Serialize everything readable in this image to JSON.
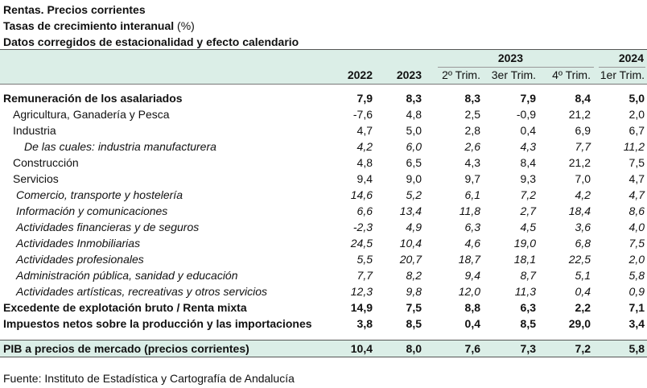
{
  "title": {
    "line1": "Rentas. Precios corrientes",
    "line2_bold": "Tasas de crecimiento interanual",
    "line2_unit": "(%)",
    "line3": "Datos corregidos de estacionalidad y efecto calendario"
  },
  "header": {
    "group_2023": "2023",
    "group_2024": "2024",
    "columns": [
      "2022",
      "2023",
      "2º Trim.",
      "3er Trim.",
      "4º Trim.",
      "1er Trim."
    ]
  },
  "rows": [
    {
      "label": "Remuneración de los asalariados",
      "style": "bold",
      "indent": 0,
      "values": [
        "7,9",
        "8,3",
        "8,3",
        "7,9",
        "8,4",
        "5,0"
      ]
    },
    {
      "label": "Agricultura, Ganadería y Pesca",
      "style": "normal",
      "indent": 1,
      "values": [
        "-7,6",
        "4,8",
        "2,5",
        "-0,9",
        "21,2",
        "2,0"
      ]
    },
    {
      "label": "Industria",
      "style": "normal",
      "indent": 1,
      "values": [
        "4,7",
        "5,0",
        "2,8",
        "0,4",
        "6,9",
        "6,7"
      ]
    },
    {
      "label": "De las cuales: industria manufacturera",
      "style": "italic",
      "indent": 2,
      "values": [
        "4,2",
        "6,0",
        "2,6",
        "4,3",
        "7,7",
        "11,2"
      ]
    },
    {
      "label": "Construcción",
      "style": "normal",
      "indent": 1,
      "values": [
        "4,8",
        "6,5",
        "4,3",
        "8,4",
        "21,2",
        "7,5"
      ]
    },
    {
      "label": "Servicios",
      "style": "normal",
      "indent": 1,
      "values": [
        "9,4",
        "9,0",
        "9,7",
        "9,3",
        "7,0",
        "4,7"
      ]
    },
    {
      "label": "Comercio, transporte y hostelería",
      "style": "italic",
      "indent": 3,
      "values": [
        "14,6",
        "5,2",
        "6,1",
        "7,2",
        "4,2",
        "4,7"
      ]
    },
    {
      "label": "Información y comunicaciones",
      "style": "italic",
      "indent": 3,
      "values": [
        "6,6",
        "13,4",
        "11,8",
        "2,7",
        "18,4",
        "8,6"
      ]
    },
    {
      "label": "Actividades financieras y de seguros",
      "style": "italic",
      "indent": 3,
      "values": [
        "-2,3",
        "4,9",
        "6,3",
        "4,5",
        "3,6",
        "4,0"
      ]
    },
    {
      "label": "Actividades Inmobiliarias",
      "style": "italic",
      "indent": 3,
      "values": [
        "24,5",
        "10,4",
        "4,6",
        "19,0",
        "6,8",
        "7,5"
      ]
    },
    {
      "label": "Actividades profesionales",
      "style": "italic",
      "indent": 3,
      "values": [
        "5,5",
        "20,7",
        "18,7",
        "18,1",
        "22,5",
        "2,0"
      ]
    },
    {
      "label": "Administración pública, sanidad y educación",
      "style": "italic",
      "indent": 3,
      "values": [
        "7,7",
        "8,2",
        "9,4",
        "8,7",
        "5,1",
        "5,8"
      ]
    },
    {
      "label": "Actividades artísticas, recreativas y otros servicios",
      "style": "italic",
      "indent": 3,
      "values": [
        "12,3",
        "9,8",
        "12,0",
        "11,3",
        "0,4",
        "0,9"
      ]
    },
    {
      "label": "Excedente de explotación bruto / Renta mixta",
      "style": "bold",
      "indent": 0,
      "values": [
        "14,9",
        "7,5",
        "8,8",
        "6,3",
        "2,2",
        "7,1"
      ]
    },
    {
      "label": "Impuestos netos sobre la producción y las importaciones",
      "style": "bold",
      "indent": 0,
      "values": [
        "3,8",
        "8,5",
        "0,4",
        "8,5",
        "29,0",
        "3,4"
      ]
    }
  ],
  "total": {
    "label": "PIB a precios de mercado (precios corrientes)",
    "values": [
      "10,4",
      "8,0",
      "7,6",
      "7,3",
      "7,2",
      "5,8"
    ]
  },
  "source": "Fuente: Instituto de Estadística y Cartografía de Andalucía"
}
